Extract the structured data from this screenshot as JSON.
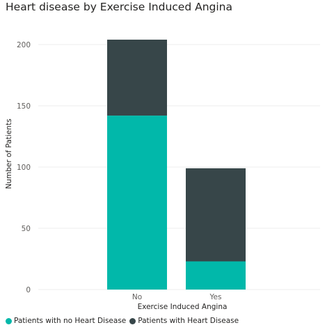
{
  "chart_data": {
    "type": "bar",
    "stacked": true,
    "title": "Heart disease by Exercise Induced Angina",
    "xlabel": "Exercise Induced Angina",
    "ylabel": "Number of Patients",
    "categories": [
      "No",
      "Yes"
    ],
    "series": [
      {
        "name": "Patients with no Heart Disease",
        "values": [
          142,
          23
        ],
        "color": "#01b8aa"
      },
      {
        "name": "Patients with Heart Disease",
        "values": [
          62,
          76
        ],
        "color": "#374649"
      }
    ],
    "ylim": [
      0,
      200
    ],
    "yticks": [
      0,
      50,
      100,
      150,
      200
    ],
    "grid": true,
    "legend_position": "bottom-left"
  }
}
